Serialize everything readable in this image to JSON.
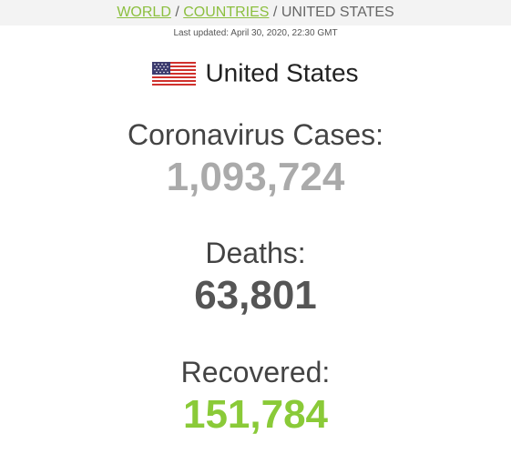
{
  "breadcrumb": {
    "world": "WORLD",
    "separator": "/",
    "countries": "COUNTRIES",
    "current": "UNITED STATES"
  },
  "last_updated": "Last updated: April 30, 2020, 22:30 GMT",
  "country": {
    "name": "United States",
    "flag_icon": "us-flag-icon"
  },
  "stats": {
    "cases": {
      "label": "Coronavirus Cases:",
      "value": "1,093,724",
      "color": "#aaaaaa"
    },
    "deaths": {
      "label": "Deaths:",
      "value": "63,801",
      "color": "#555555"
    },
    "recovered": {
      "label": "Recovered:",
      "value": "151,784",
      "color": "#8aca38"
    }
  }
}
